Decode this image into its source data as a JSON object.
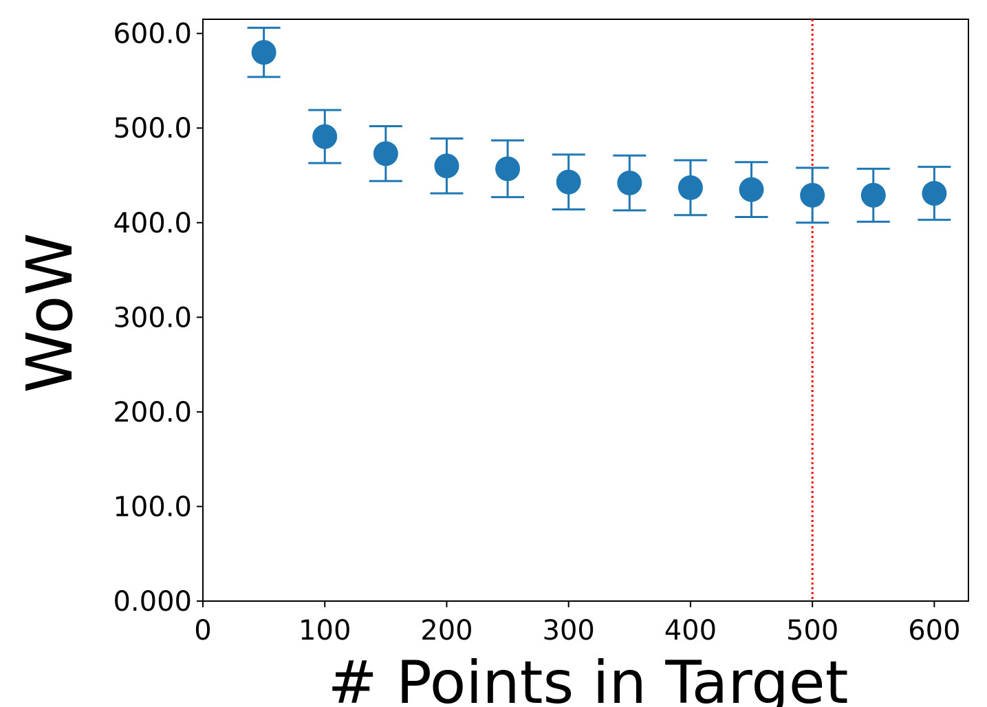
{
  "chart_data": {
    "type": "errorbar",
    "xlabel": "# Points in Target",
    "ylabel": "WoW",
    "x": [
      50,
      100,
      150,
      200,
      250,
      300,
      350,
      400,
      450,
      500,
      550,
      600
    ],
    "series": [
      {
        "color": "#1f77b4",
        "values": [
          580,
          491,
          473,
          460,
          457,
          443,
          442,
          437,
          435,
          429,
          429,
          431
        ],
        "errors": [
          26,
          28,
          29,
          29,
          30,
          29,
          29,
          29,
          29,
          29,
          28,
          28
        ]
      }
    ],
    "xlim": [
      0,
      628
    ],
    "ylim": [
      0,
      615
    ],
    "xticks": [
      0,
      100,
      200,
      300,
      400,
      500,
      600
    ],
    "yticks": [
      {
        "value": 0,
        "label": "0.000"
      },
      {
        "value": 100,
        "label": "100.0"
      },
      {
        "value": 200,
        "label": "200.0"
      },
      {
        "value": 300,
        "label": "300.0"
      },
      {
        "value": 400,
        "label": "400.0"
      },
      {
        "value": 500,
        "label": "500.0"
      },
      {
        "value": 600,
        "label": "600.0"
      }
    ],
    "vlines": [
      {
        "x": 500,
        "color": "#ff0000"
      }
    ],
    "grid": false
  }
}
